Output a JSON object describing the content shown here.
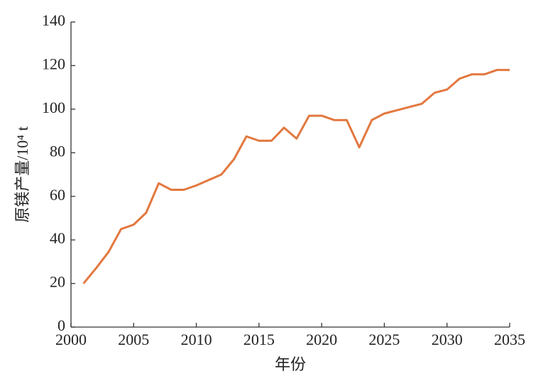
{
  "chart_data": {
    "type": "line",
    "x_label": "年份",
    "y_label": "原镁产量/10⁴ t",
    "x": [
      2001,
      2002,
      2003,
      2004,
      2005,
      2006,
      2007,
      2008,
      2009,
      2010,
      2011,
      2012,
      2013,
      2014,
      2015,
      2016,
      2017,
      2018,
      2019,
      2020,
      2021,
      2022,
      2023,
      2024,
      2025,
      2026,
      2027,
      2028,
      2029,
      2030,
      2031,
      2032,
      2033,
      2034,
      2035
    ],
    "series": [
      {
        "color": "#e2783f",
        "values": [
          20,
          27,
          34.5,
          45,
          47,
          52.5,
          66,
          63,
          63,
          65,
          67.5,
          70,
          77,
          87.5,
          85.5,
          85.5,
          91.5,
          86.5,
          97,
          97,
          95,
          95,
          82.5,
          95,
          98,
          99.5,
          101,
          102.5,
          107.5,
          109,
          114,
          116,
          116,
          118,
          118
        ]
      }
    ],
    "xlim": [
      2000,
      2035
    ],
    "xticks": [
      2000,
      2005,
      2010,
      2015,
      2020,
      2025,
      2030,
      2035
    ],
    "ylim": [
      0,
      140
    ],
    "yticks": [
      0,
      20,
      40,
      60,
      80,
      100,
      120,
      140
    ]
  }
}
